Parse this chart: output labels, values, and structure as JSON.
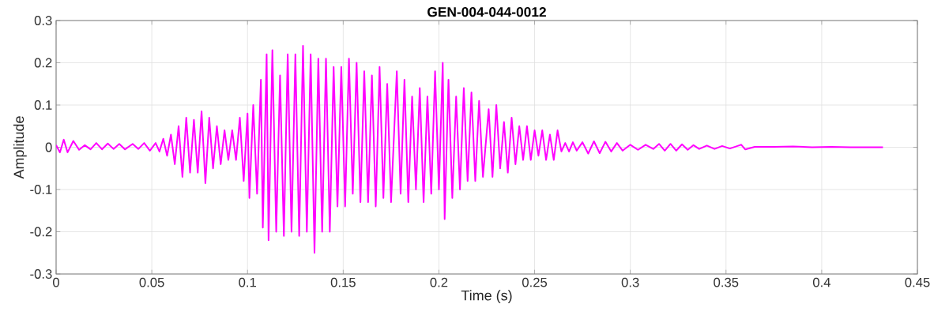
{
  "chart_data": {
    "type": "line",
    "title": "GEN-004-044-0012",
    "xlabel": "Time (s)",
    "ylabel": "Amplitude",
    "xlim": [
      0,
      0.45
    ],
    "ylim": [
      -0.3,
      0.3
    ],
    "xticks": [
      0,
      0.05,
      0.1,
      0.15,
      0.2,
      0.25,
      0.3,
      0.35,
      0.4,
      0.45
    ],
    "yticks": [
      -0.3,
      -0.2,
      -0.1,
      0,
      0.1,
      0.2,
      0.3
    ],
    "grid": true,
    "series": [
      {
        "color": "#ff00ff",
        "x": [
          0,
          0.002,
          0.004,
          0.006,
          0.009,
          0.012,
          0.015,
          0.018,
          0.021,
          0.024,
          0.027,
          0.03,
          0.033,
          0.036,
          0.04,
          0.043,
          0.046,
          0.049,
          0.052,
          0.054,
          0.056,
          0.058,
          0.06,
          0.062,
          0.064,
          0.066,
          0.068,
          0.07,
          0.072,
          0.074,
          0.076,
          0.078,
          0.08,
          0.082,
          0.084,
          0.086,
          0.088,
          0.09,
          0.092,
          0.094,
          0.096,
          0.098,
          0.1,
          0.101,
          0.103,
          0.105,
          0.107,
          0.108,
          0.11,
          0.111,
          0.113,
          0.115,
          0.117,
          0.119,
          0.121,
          0.123,
          0.125,
          0.127,
          0.129,
          0.131,
          0.133,
          0.135,
          0.137,
          0.139,
          0.141,
          0.143,
          0.145,
          0.147,
          0.149,
          0.151,
          0.153,
          0.155,
          0.157,
          0.159,
          0.161,
          0.163,
          0.165,
          0.167,
          0.169,
          0.171,
          0.173,
          0.175,
          0.178,
          0.18,
          0.182,
          0.184,
          0.186,
          0.188,
          0.19,
          0.192,
          0.194,
          0.196,
          0.198,
          0.2,
          0.202,
          0.203,
          0.205,
          0.207,
          0.209,
          0.211,
          0.213,
          0.215,
          0.217,
          0.219,
          0.221,
          0.223,
          0.226,
          0.228,
          0.23,
          0.232,
          0.234,
          0.236,
          0.238,
          0.24,
          0.242,
          0.244,
          0.246,
          0.248,
          0.25,
          0.252,
          0.254,
          0.256,
          0.258,
          0.26,
          0.262,
          0.264,
          0.266,
          0.268,
          0.27,
          0.272,
          0.275,
          0.278,
          0.281,
          0.284,
          0.287,
          0.29,
          0.293,
          0.296,
          0.3,
          0.304,
          0.308,
          0.312,
          0.315,
          0.318,
          0.321,
          0.324,
          0.327,
          0.33,
          0.333,
          0.336,
          0.34,
          0.344,
          0.348,
          0.352,
          0.356,
          0.358,
          0.36,
          0.365,
          0.375,
          0.385,
          0.395,
          0.405,
          0.415,
          0.425,
          0.432
        ],
        "values": [
          0.005,
          -0.012,
          0.018,
          -0.012,
          0.015,
          -0.006,
          0.005,
          -0.005,
          0.01,
          -0.005,
          0.009,
          -0.004,
          0.008,
          -0.005,
          0.008,
          -0.004,
          0.01,
          -0.008,
          0.01,
          -0.01,
          0.02,
          -0.02,
          0.03,
          -0.04,
          0.05,
          -0.07,
          0.07,
          -0.06,
          0.065,
          -0.06,
          0.085,
          -0.085,
          0.07,
          -0.05,
          0.05,
          -0.04,
          0.04,
          -0.03,
          0.04,
          -0.03,
          0.07,
          -0.08,
          0.08,
          -0.12,
          0.1,
          -0.11,
          0.16,
          -0.19,
          0.22,
          -0.22,
          0.23,
          -0.2,
          0.17,
          -0.21,
          0.22,
          -0.2,
          0.22,
          -0.21,
          0.24,
          -0.2,
          0.22,
          -0.25,
          0.21,
          -0.2,
          0.21,
          -0.2,
          0.19,
          -0.14,
          0.19,
          -0.14,
          0.21,
          -0.11,
          0.2,
          -0.13,
          0.18,
          -0.13,
          0.17,
          -0.14,
          0.19,
          -0.12,
          0.15,
          -0.13,
          0.18,
          -0.11,
          0.16,
          -0.13,
          0.12,
          -0.1,
          0.14,
          -0.13,
          0.12,
          -0.11,
          0.18,
          -0.1,
          0.2,
          -0.17,
          0.16,
          -0.12,
          0.12,
          -0.1,
          0.14,
          -0.08,
          0.13,
          -0.08,
          0.11,
          -0.07,
          0.09,
          -0.07,
          0.1,
          -0.05,
          0.06,
          -0.06,
          0.07,
          -0.04,
          0.05,
          -0.03,
          0.05,
          -0.03,
          0.04,
          -0.02,
          0.04,
          -0.03,
          0.03,
          -0.03,
          0.04,
          -0.01,
          0.01,
          -0.01,
          0.012,
          -0.008,
          0.012,
          -0.015,
          0.014,
          -0.014,
          0.013,
          -0.01,
          0.01,
          -0.008,
          0.006,
          -0.006,
          0.006,
          -0.004,
          0.008,
          -0.008,
          0.008,
          -0.008,
          0.007,
          -0.006,
          0.005,
          -0.004,
          0.004,
          -0.004,
          0.003,
          -0.003,
          0.003,
          0.006,
          -0.005,
          0.001,
          0.001,
          0.002,
          0,
          0.001,
          0,
          0,
          0
        ]
      }
    ]
  }
}
